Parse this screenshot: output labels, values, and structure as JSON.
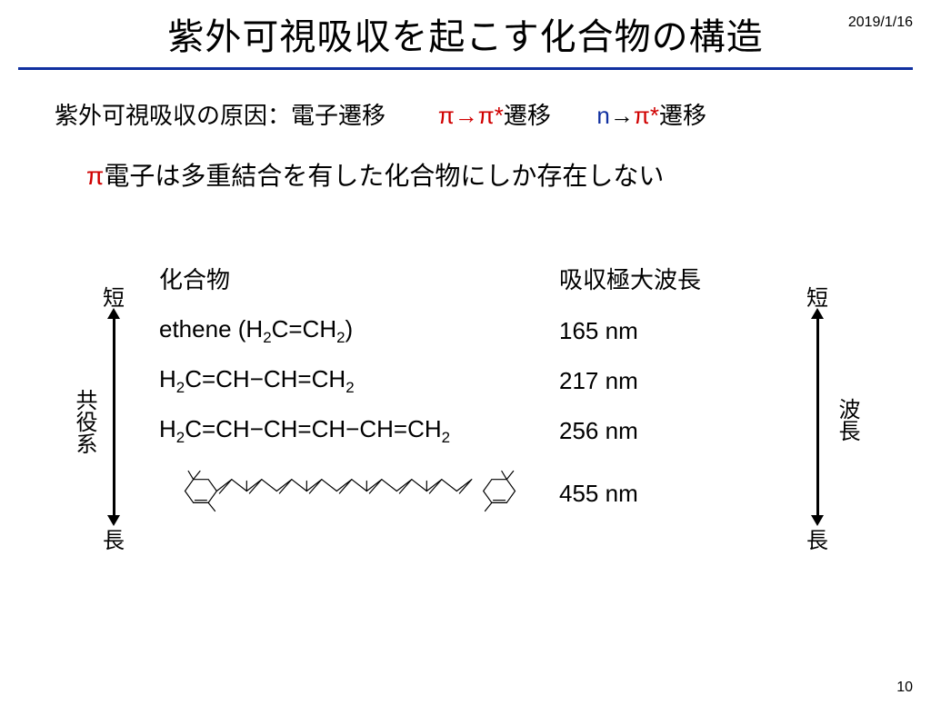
{
  "date": "2019/1/16",
  "title": "紫外可視吸収を起こす化合物の構造",
  "line1_a": "紫外可視吸収の原因：電子遷移",
  "line1_b_pi": "π",
  "line1_b_arrow": "→",
  "line1_b_pistar": "π*",
  "line1_b_tail": "遷移",
  "line1_c_n": "n",
  "line1_c_arrow": "→",
  "line1_c_pistar": "π*",
  "line1_c_tail": "遷移",
  "line2_pi": "π",
  "line2_rest": "電子は多重結合を有した化合物にしか存在しない",
  "table": {
    "header_compound": "化合物",
    "header_lambda": "吸収極大波長",
    "rows": [
      {
        "compound_html": "ethene (H<sub>2</sub>C=CH<sub>2</sub>)",
        "lambda": "165 nm"
      },
      {
        "compound_html": "H<sub>2</sub>C=CH−CH=CH<sub>2</sub>",
        "lambda": "217 nm"
      },
      {
        "compound_html": "H<sub>2</sub>C=CH−CH=CH−CH=CH<sub>2</sub>",
        "lambda": "256 nm"
      },
      {
        "compound_html": "__MOLECULE__",
        "lambda": "455 nm"
      }
    ]
  },
  "left_axis": {
    "top": "短",
    "label": "共役系",
    "bottom": "長"
  },
  "right_axis": {
    "top": "短",
    "label": "波長",
    "bottom": "長"
  },
  "page_number": "10",
  "colors": {
    "rule": "#1030a0",
    "red": "#d00000",
    "blue": "#1030a0",
    "text": "#000000",
    "bg": "#ffffff"
  },
  "fonts": {
    "title_pt": 40,
    "body_pt": 26,
    "line2_pt": 28,
    "axis_pt": 24,
    "small_pt": 16
  }
}
